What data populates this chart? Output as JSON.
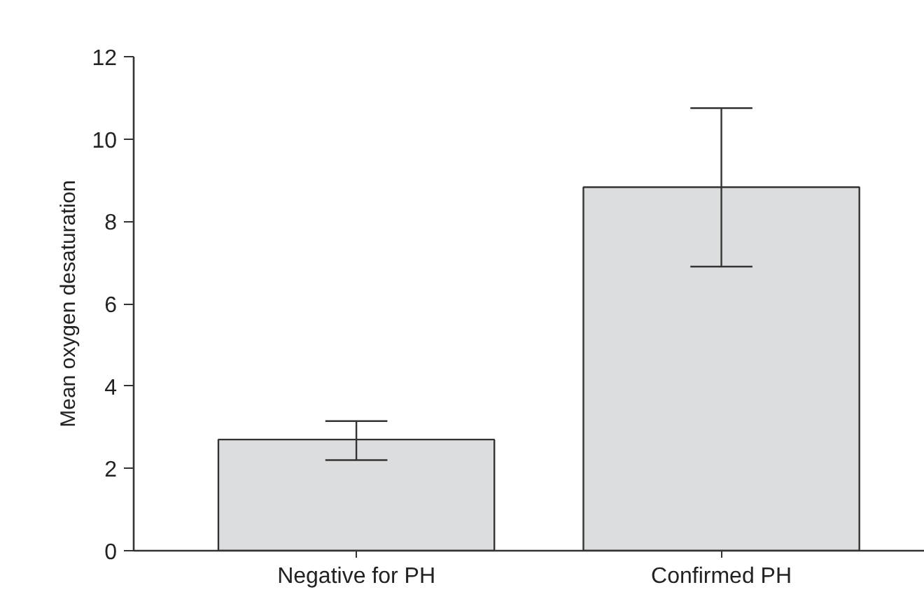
{
  "chart_data": {
    "type": "bar",
    "ylabel": "Mean oxygen desaturation",
    "categories": [
      "Negative for PH",
      "Confirmed PH"
    ],
    "values": [
      2.7,
      8.83
    ],
    "errors": [
      [
        2.2,
        3.15
      ],
      [
        6.9,
        10.75
      ]
    ],
    "color": "#dcdddf",
    "ylim": [
      0,
      12
    ],
    "yticks": [
      0,
      2,
      4,
      6,
      8,
      10,
      12
    ],
    "grid": false
  }
}
